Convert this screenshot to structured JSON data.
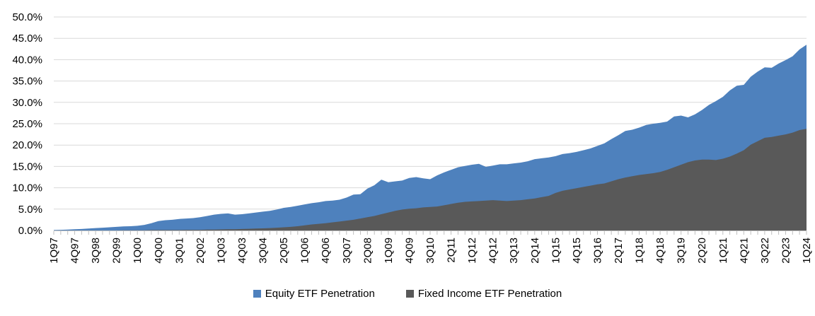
{
  "chart_data": {
    "type": "area",
    "title": "",
    "xlabel": "",
    "ylabel": "",
    "ylim": [
      0,
      50
    ],
    "y_step": 5,
    "grid": "horizontal",
    "legend_position": "bottom",
    "x_start": "1Q97",
    "x_end": "1Q24",
    "x_tick_label_every_n_quarters": 3,
    "y_tick_labels": [
      "0.0%",
      "5.0%",
      "10.0%",
      "15.0%",
      "20.0%",
      "25.0%",
      "30.0%",
      "35.0%",
      "40.0%",
      "45.0%",
      "50.0%"
    ],
    "x_tick_labels": [
      "1Q97",
      "4Q97",
      "3Q98",
      "2Q99",
      "1Q00",
      "4Q00",
      "3Q01",
      "2Q02",
      "1Q03",
      "4Q03",
      "3Q04",
      "2Q05",
      "1Q06",
      "4Q06",
      "3Q07",
      "2Q08",
      "1Q09",
      "4Q09",
      "3Q10",
      "2Q11",
      "1Q12",
      "4Q12",
      "3Q13",
      "2Q14",
      "1Q15",
      "4Q15",
      "3Q16",
      "2Q17",
      "1Q18",
      "4Q18",
      "3Q19",
      "2Q20",
      "1Q21",
      "4Q21",
      "3Q22",
      "2Q23",
      "1Q24"
    ],
    "series": [
      {
        "name": "Equity ETF Penetration",
        "color": "#4E81BD",
        "values": [
          0.1,
          0.15,
          0.2,
          0.3,
          0.35,
          0.45,
          0.55,
          0.65,
          0.75,
          0.85,
          0.95,
          1.0,
          1.1,
          1.3,
          1.7,
          2.2,
          2.4,
          2.5,
          2.7,
          2.8,
          2.9,
          3.1,
          3.4,
          3.7,
          3.9,
          4.0,
          3.7,
          3.8,
          4.0,
          4.2,
          4.4,
          4.6,
          4.9,
          5.3,
          5.5,
          5.8,
          6.1,
          6.4,
          6.6,
          6.9,
          7.0,
          7.2,
          7.7,
          8.4,
          8.5,
          9.8,
          10.6,
          11.9,
          11.3,
          11.5,
          11.7,
          12.3,
          12.5,
          12.2,
          12.0,
          12.9,
          13.6,
          14.2,
          14.8,
          15.1,
          15.4,
          15.6,
          14.9,
          15.2,
          15.5,
          15.5,
          15.7,
          15.9,
          16.2,
          16.7,
          16.9,
          17.1,
          17.4,
          17.9,
          18.1,
          18.4,
          18.8,
          19.2,
          19.8,
          20.4,
          21.4,
          22.3,
          23.3,
          23.6,
          24.1,
          24.7,
          25.0,
          25.2,
          25.5,
          26.7,
          26.9,
          26.5,
          27.2,
          28.2,
          29.4,
          30.3,
          31.3,
          32.8,
          33.9,
          34.1,
          36.0,
          37.2,
          38.2,
          38.1,
          39.1,
          39.9,
          40.8,
          42.4,
          43.5
        ]
      },
      {
        "name": "Fixed Income ETF Penetration",
        "color": "#595959",
        "values": [
          0.0,
          0.0,
          0.0,
          0.0,
          0.0,
          0.0,
          0.0,
          0.0,
          0.0,
          0.0,
          0.05,
          0.05,
          0.05,
          0.05,
          0.1,
          0.1,
          0.1,
          0.1,
          0.1,
          0.15,
          0.15,
          0.15,
          0.2,
          0.2,
          0.25,
          0.3,
          0.3,
          0.35,
          0.4,
          0.45,
          0.5,
          0.55,
          0.65,
          0.75,
          0.85,
          1.0,
          1.2,
          1.4,
          1.55,
          1.7,
          1.9,
          2.1,
          2.3,
          2.5,
          2.8,
          3.1,
          3.4,
          3.8,
          4.2,
          4.6,
          4.9,
          5.1,
          5.2,
          5.4,
          5.5,
          5.6,
          5.9,
          6.2,
          6.5,
          6.7,
          6.8,
          6.9,
          7.0,
          7.1,
          7.0,
          6.9,
          7.0,
          7.1,
          7.3,
          7.5,
          7.8,
          8.1,
          8.8,
          9.3,
          9.6,
          9.9,
          10.2,
          10.5,
          10.8,
          11.0,
          11.5,
          12.0,
          12.4,
          12.7,
          13.0,
          13.2,
          13.4,
          13.7,
          14.2,
          14.8,
          15.4,
          16.0,
          16.4,
          16.6,
          16.6,
          16.5,
          16.8,
          17.3,
          18.0,
          18.8,
          20.1,
          20.9,
          21.7,
          21.9,
          22.2,
          22.5,
          22.9,
          23.5,
          23.8
        ]
      }
    ],
    "colors": {
      "gridline": "#D9D9D9",
      "axis": "#BFBFBF",
      "text": "#000000",
      "background": "#FFFFFF"
    }
  }
}
